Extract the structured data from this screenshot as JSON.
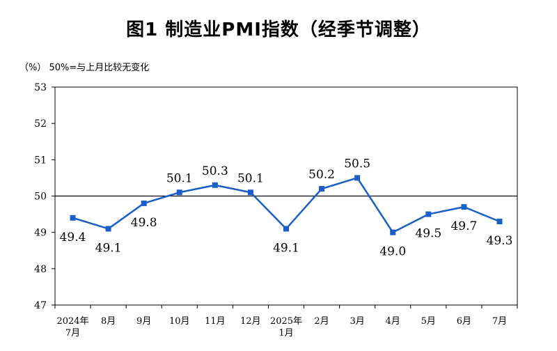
{
  "chart_data": {
    "type": "line",
    "title": "图1  制造业PMI指数（经季节调整）",
    "unit_note": "（%）  50%=与上月比较无变化",
    "categories": [
      "2024年 7月",
      "8月",
      "9月",
      "10月",
      "11月",
      "12月",
      "2025年 1月",
      "2月",
      "3月",
      "4月",
      "5月",
      "6月",
      "7月"
    ],
    "category_lines": [
      [
        "2024年",
        "7月"
      ],
      [
        "8月"
      ],
      [
        "9月"
      ],
      [
        "10月"
      ],
      [
        "11月"
      ],
      [
        "12月"
      ],
      [
        "2025年",
        "1月"
      ],
      [
        "2月"
      ],
      [
        "3月"
      ],
      [
        "4月"
      ],
      [
        "5月"
      ],
      [
        "6月"
      ],
      [
        "7月"
      ]
    ],
    "values": [
      49.4,
      49.1,
      49.8,
      50.1,
      50.3,
      50.1,
      49.1,
      50.2,
      50.5,
      49.0,
      49.5,
      49.7,
      49.3
    ],
    "value_labels": [
      "49.4",
      "49.1",
      "49.8",
      "50.1",
      "50.3",
      "50.1",
      "49.1",
      "50.2",
      "50.5",
      "49.0",
      "49.5",
      "49.7",
      "49.3"
    ],
    "label_positions": [
      "below",
      "below",
      "below",
      "above",
      "above",
      "above",
      "below",
      "above",
      "above",
      "below",
      "below",
      "below",
      "below"
    ],
    "ylim": [
      47,
      53
    ],
    "yticks": [
      "47",
      "48",
      "49",
      "50",
      "51",
      "52",
      "53"
    ],
    "reference_line": 50,
    "grid": false,
    "line_color": "#1a5fc8",
    "marker": "square"
  }
}
